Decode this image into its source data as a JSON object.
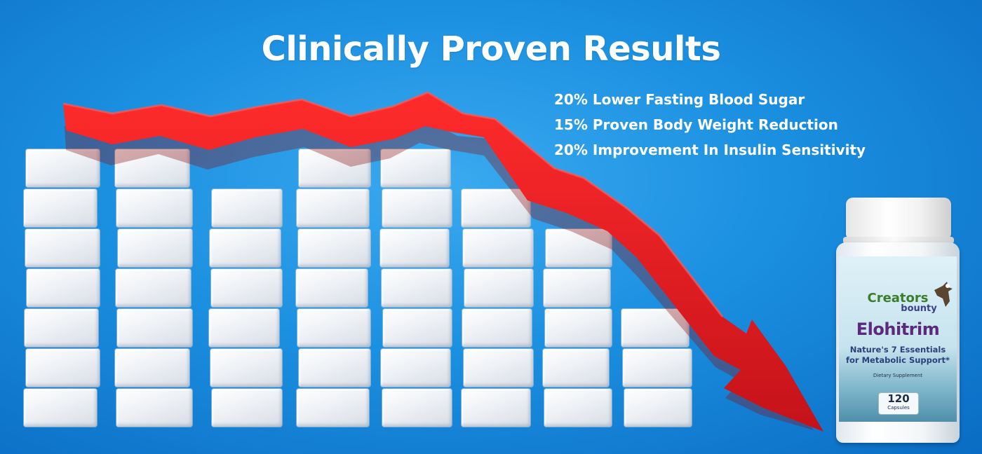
{
  "banner": {
    "title": "Clinically Proven Results",
    "benefits": [
      "20% Lower Fasting Blood Sugar",
      "15% Proven Body Weight Reduction",
      "20% Improvement In Insulin Sensitivity"
    ]
  },
  "product": {
    "brand_line1": "Creators",
    "brand_line2": "bounty",
    "name": "Elohitrim",
    "tagline_line1": "Nature's 7 Essentials",
    "tagline_line2": "for Metabolic Support*",
    "category": "Dietary Supplement",
    "count": "120",
    "count_unit": "Capsules"
  },
  "colors": {
    "background": "#1b8fe0",
    "arrow": "#e3191e",
    "title_text": "#ffffff",
    "product_name": "#5b2a7c",
    "brand_green": "#3c7d2b"
  },
  "image": {
    "subject": "stacks of sugar cubes with a falling red arrow",
    "stack_heights_cubes": [
      7,
      7,
      6,
      7,
      7,
      6,
      5,
      3
    ]
  }
}
